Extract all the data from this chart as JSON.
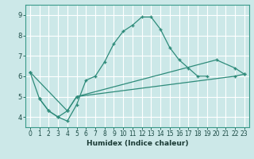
{
  "title": "",
  "xlabel": "Humidex (Indice chaleur)",
  "background_color": "#cce8e8",
  "grid_color": "#ffffff",
  "line_color": "#2e8b7a",
  "xlim": [
    -0.5,
    23.5
  ],
  "ylim": [
    3.5,
    9.5
  ],
  "xticks": [
    0,
    1,
    2,
    3,
    4,
    5,
    6,
    7,
    8,
    9,
    10,
    11,
    12,
    13,
    14,
    15,
    16,
    17,
    18,
    19,
    20,
    21,
    22,
    23
  ],
  "yticks": [
    4,
    5,
    6,
    7,
    8,
    9
  ],
  "line1_x": [
    1,
    2,
    3,
    4,
    5,
    6,
    7,
    8,
    9,
    10,
    11,
    12,
    13,
    14,
    15,
    16,
    17,
    18,
    19
  ],
  "line1_y": [
    4.9,
    4.3,
    4.0,
    3.8,
    4.6,
    5.8,
    6.0,
    6.7,
    7.6,
    8.2,
    8.5,
    8.9,
    8.9,
    8.3,
    7.4,
    6.8,
    6.4,
    6.0,
    6.0
  ],
  "line2_x": [
    0,
    1,
    2,
    3,
    4,
    5,
    20,
    22,
    23
  ],
  "line2_y": [
    6.2,
    4.9,
    4.3,
    4.0,
    4.3,
    5.0,
    6.8,
    6.4,
    6.1
  ],
  "line3_x": [
    0,
    4,
    5,
    22,
    23
  ],
  "line3_y": [
    6.2,
    4.3,
    5.0,
    6.0,
    6.1
  ]
}
